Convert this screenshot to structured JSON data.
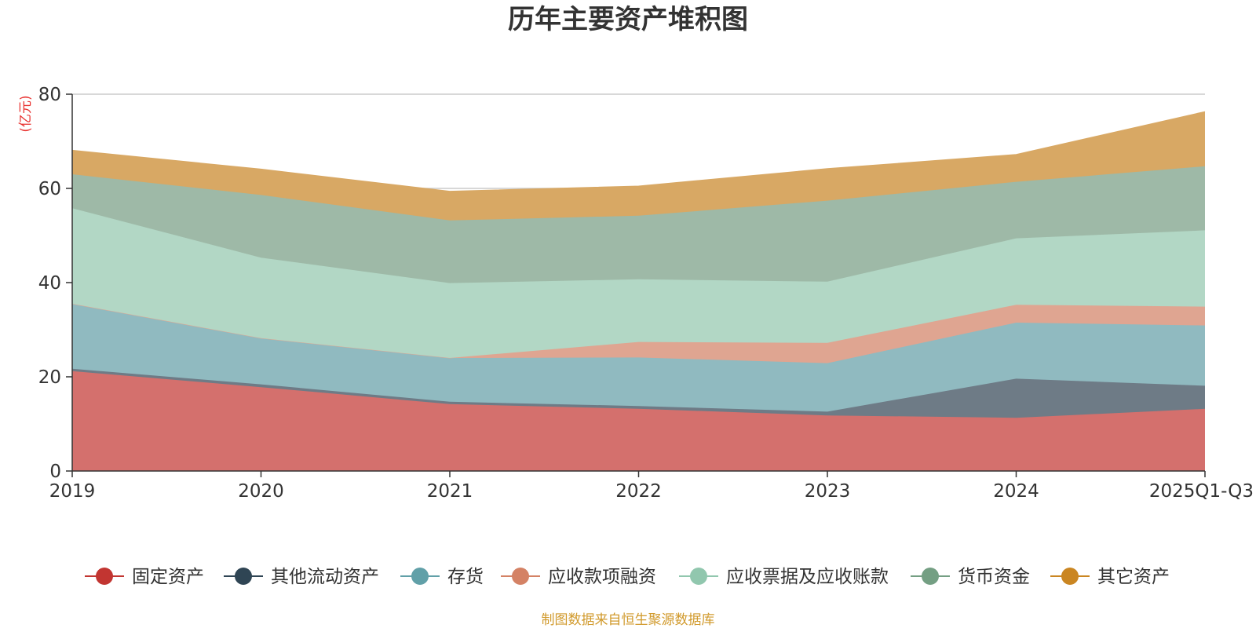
{
  "chart_data": {
    "type": "area",
    "stacked": true,
    "title": "历年主要资产堆积图",
    "ylabel": "(亿元)",
    "ylim": [
      0,
      80
    ],
    "yticks": [
      "0",
      "20",
      "40",
      "60",
      "80"
    ],
    "categories": [
      "2019",
      "2020",
      "2021",
      "2022",
      "2023",
      "2024",
      "2025Q1-Q3"
    ],
    "grid": true,
    "legend_position": "bottom",
    "series": [
      {
        "name": "固定资产",
        "color": "#c23531",
        "fill": "#d4706d",
        "values": [
          21.2,
          17.8,
          14.2,
          13.2,
          11.8,
          11.3,
          13.2
        ]
      },
      {
        "name": "其他流动资产",
        "color": "#2f4554",
        "fill": "#6e7b86",
        "values": [
          0.5,
          0.6,
          0.5,
          0.6,
          0.8,
          8.3,
          4.9
        ]
      },
      {
        "name": "存货",
        "color": "#61a0a8",
        "fill": "#90bac0",
        "values": [
          13.8,
          9.8,
          9.3,
          10.3,
          10.3,
          11.9,
          12.8
        ]
      },
      {
        "name": "应收款项融资",
        "color": "#d48265",
        "fill": "#dfa591",
        "values": [
          0.0,
          0.0,
          0.0,
          3.3,
          4.3,
          3.8,
          4.0
        ]
      },
      {
        "name": "应收票据及应收账款",
        "color": "#91c7ae",
        "fill": "#b2d7c5",
        "values": [
          20.3,
          17.1,
          15.9,
          13.3,
          13.0,
          14.1,
          16.2
        ]
      },
      {
        "name": "货币资金",
        "color": "#749f83",
        "fill": "#9eb9a7",
        "values": [
          7.2,
          13.3,
          13.3,
          13.5,
          17.2,
          12.0,
          13.6
        ]
      },
      {
        "name": "其它资产",
        "color": "#ca8622",
        "fill": "#d8a864",
        "values": [
          5.1,
          5.5,
          6.2,
          6.3,
          6.8,
          5.8,
          11.6
        ]
      }
    ],
    "source": "制图数据来自恒生聚源数据库"
  }
}
